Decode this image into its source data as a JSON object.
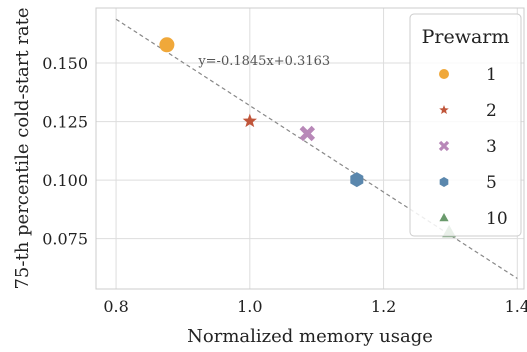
{
  "chart_data": {
    "type": "scatter",
    "title": "",
    "xlabel": "Normalized memory usage",
    "ylabel": "75-th percentile cold-start rate",
    "xlim": [
      0.77,
      1.41
    ],
    "ylim": [
      0.0535,
      0.1735
    ],
    "x_ticks": [
      0.8,
      1.0,
      1.2,
      1.4
    ],
    "x_tick_labels": [
      "0.8",
      "1.0",
      "1.2",
      "1.4"
    ],
    "y_ticks": [
      0.075,
      0.1,
      0.125,
      0.15
    ],
    "y_tick_labels": [
      "0.075",
      "0.100",
      "0.125",
      "0.150"
    ],
    "grid": true,
    "legend": {
      "title": "Prewarm",
      "placement": "top-right"
    },
    "series": [
      {
        "name": "1",
        "marker": "circle",
        "color": "#f0a83a",
        "points": [
          {
            "x": 0.876,
            "y": 0.1578
          }
        ]
      },
      {
        "name": "2",
        "marker": "star",
        "color": "#c0553a",
        "points": [
          {
            "x": 1.0,
            "y": 0.1252
          }
        ]
      },
      {
        "name": "3",
        "marker": "x",
        "color": "#b888b8",
        "points": [
          {
            "x": 1.086,
            "y": 0.1199
          }
        ]
      },
      {
        "name": "5",
        "marker": "hexagon",
        "color": "#5a87ad",
        "points": [
          {
            "x": 1.16,
            "y": 0.1002
          }
        ]
      },
      {
        "name": "10",
        "marker": "triangle",
        "color": "#6a9a6c",
        "points": [
          {
            "x": 1.298,
            "y": 0.0777
          }
        ]
      }
    ],
    "fit_line": {
      "slope": -0.1845,
      "intercept": 0.3163,
      "x_range": [
        0.8,
        1.4
      ],
      "color": "#888888",
      "style": "dashed",
      "label": "y=-0.1845x+0.3163"
    }
  }
}
